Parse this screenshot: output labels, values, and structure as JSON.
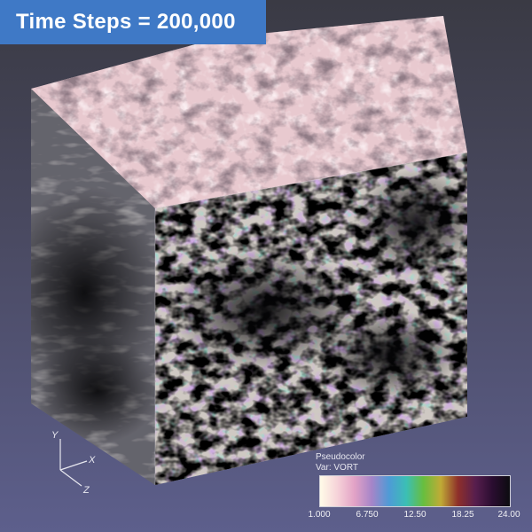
{
  "title": "Time Steps = 200,000",
  "axes_triad": {
    "y_label": "Y",
    "x_label": "X",
    "z_label": "Z"
  },
  "legend": {
    "title": "Pseudocolor",
    "variable": "Var: VORT",
    "ticks": [
      "1.000",
      "6.750",
      "12.50",
      "18.25",
      "24.00"
    ],
    "colormap": [
      "#fffbe8",
      "#f6d3d9",
      "#e2a2c6",
      "#a585c8",
      "#4e9bd6",
      "#3bbfb5",
      "#68be3e",
      "#c0ab36",
      "#8e2f2a",
      "#571e4e",
      "#2a0d30",
      "#0c0c10"
    ]
  },
  "colors": {
    "banner": "#3f79c6",
    "background_top": "#3a3a44",
    "background_bottom": "#5d5f8c"
  }
}
